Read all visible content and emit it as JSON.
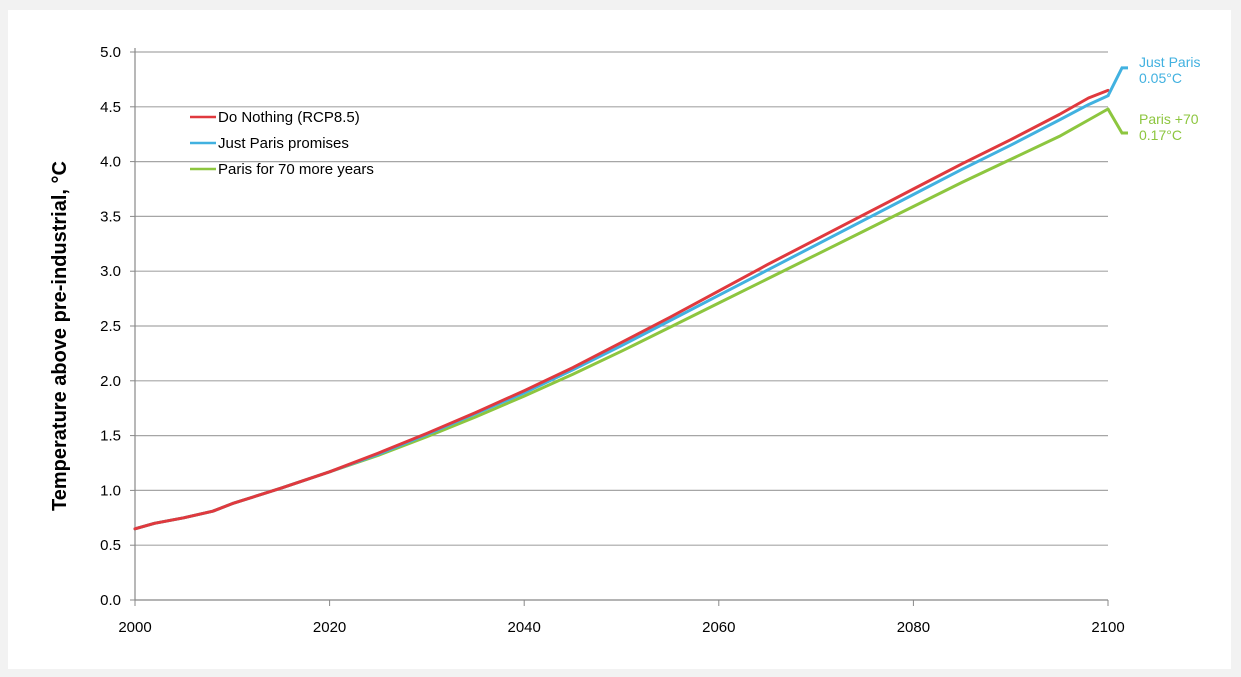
{
  "chart_data": {
    "type": "line",
    "title": "",
    "xlabel": "",
    "ylabel": "Temperature above pre-industrial, °C",
    "xlim": [
      2000,
      2100
    ],
    "ylim": [
      0,
      5
    ],
    "x_ticks": [
      "2000",
      "2020",
      "2040",
      "2060",
      "2080",
      "2100"
    ],
    "y_ticks": [
      "0.0",
      "0.5",
      "1.0",
      "1.5",
      "2.0",
      "2.5",
      "3.0",
      "3.5",
      "4.0",
      "4.5",
      "5.0"
    ],
    "grid": "horizontal",
    "legend_position": "top-left",
    "series": [
      {
        "name": "Do Nothing (RCP8.5)",
        "color": "#e0393e",
        "x": [
          2000,
          2002,
          2005,
          2008,
          2010,
          2015,
          2020,
          2025,
          2030,
          2035,
          2040,
          2045,
          2050,
          2055,
          2060,
          2065,
          2070,
          2075,
          2080,
          2085,
          2090,
          2095,
          2098,
          2100
        ],
        "y": [
          0.65,
          0.7,
          0.75,
          0.81,
          0.88,
          1.02,
          1.17,
          1.34,
          1.52,
          1.71,
          1.91,
          2.12,
          2.35,
          2.58,
          2.82,
          3.06,
          3.29,
          3.52,
          3.75,
          3.98,
          4.2,
          4.43,
          4.58,
          4.65
        ]
      },
      {
        "name": "Just Paris promises",
        "color": "#41b1e0",
        "x": [
          2000,
          2002,
          2005,
          2008,
          2010,
          2015,
          2020,
          2025,
          2030,
          2035,
          2040,
          2045,
          2050,
          2055,
          2060,
          2065,
          2070,
          2075,
          2080,
          2085,
          2090,
          2095,
          2098,
          2100
        ],
        "y": [
          0.65,
          0.7,
          0.75,
          0.81,
          0.88,
          1.02,
          1.17,
          1.33,
          1.51,
          1.7,
          1.89,
          2.1,
          2.32,
          2.55,
          2.78,
          3.01,
          3.24,
          3.47,
          3.7,
          3.93,
          4.15,
          4.38,
          4.52,
          4.6
        ]
      },
      {
        "name": "Paris for 70 more years",
        "color": "#8dc63f",
        "x": [
          2000,
          2002,
          2005,
          2008,
          2010,
          2015,
          2020,
          2025,
          2030,
          2035,
          2040,
          2045,
          2050,
          2055,
          2060,
          2065,
          2070,
          2075,
          2080,
          2085,
          2090,
          2095,
          2098,
          2100
        ],
        "y": [
          0.65,
          0.7,
          0.75,
          0.81,
          0.88,
          1.02,
          1.17,
          1.32,
          1.49,
          1.67,
          1.86,
          2.06,
          2.27,
          2.49,
          2.71,
          2.93,
          3.15,
          3.37,
          3.59,
          3.81,
          4.02,
          4.23,
          4.38,
          4.48
        ]
      }
    ],
    "annotations": [
      {
        "series": 1,
        "line1": "Just Paris",
        "line2": "0.05°C",
        "color": "#41b1e0"
      },
      {
        "series": 2,
        "line1": "Paris +70",
        "line2": "0.17°C",
        "color": "#8dc63f"
      }
    ]
  }
}
